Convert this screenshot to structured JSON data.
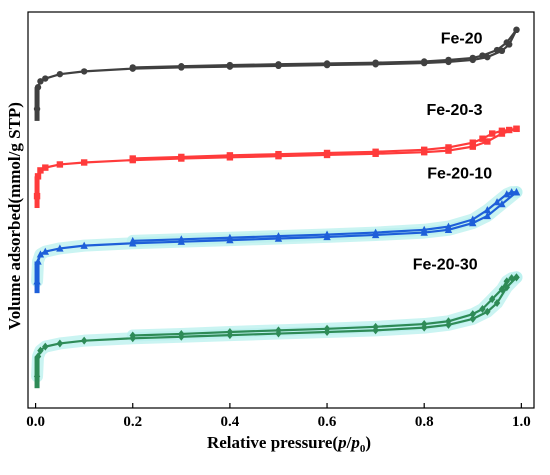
{
  "chart_data": {
    "type": "line",
    "title": "",
    "xlabel_main": "Relative pressure(",
    "xlabel_p": "p",
    "xlabel_slash": "/",
    "xlabel_p0": "p",
    "xlabel_sub": "0",
    "xlabel_close": ")",
    "ylabel": "Volume adsorbed(mmol/g STP)",
    "xlim": [
      0.0,
      1.0
    ],
    "xticks": [
      "0.0",
      "0.2",
      "0.4",
      "0.6",
      "0.8",
      "1.0"
    ],
    "xtick_values": [
      0.0,
      0.2,
      0.4,
      0.6,
      0.8,
      1.0
    ],
    "y_tick_labels": false,
    "ylim": [
      0,
      100
    ],
    "grid": false,
    "series": [
      {
        "name": "Fe-20",
        "color": "#404040",
        "marker": "circle",
        "adsorption": [
          [
            0.003,
            75.5
          ],
          [
            0.005,
            81
          ],
          [
            0.01,
            82.5
          ],
          [
            0.02,
            83.2
          ],
          [
            0.05,
            84.3
          ],
          [
            0.1,
            85
          ],
          [
            0.2,
            85.7
          ],
          [
            0.3,
            86
          ],
          [
            0.4,
            86.2
          ],
          [
            0.5,
            86.4
          ],
          [
            0.6,
            86.6
          ],
          [
            0.7,
            86.8
          ],
          [
            0.8,
            87.1
          ],
          [
            0.85,
            87.4
          ],
          [
            0.9,
            87.9
          ],
          [
            0.93,
            88.6
          ],
          [
            0.96,
            90.2
          ],
          [
            0.975,
            91.8
          ],
          [
            0.99,
            95.5
          ]
        ],
        "desorption": [
          [
            0.99,
            95.5
          ],
          [
            0.97,
            92.3
          ],
          [
            0.95,
            90.4
          ],
          [
            0.92,
            89
          ],
          [
            0.9,
            88.4
          ],
          [
            0.85,
            87.9
          ],
          [
            0.8,
            87.5
          ],
          [
            0.7,
            87.2
          ],
          [
            0.6,
            87
          ],
          [
            0.5,
            86.8
          ],
          [
            0.4,
            86.6
          ],
          [
            0.3,
            86.3
          ],
          [
            0.2,
            86
          ]
        ]
      },
      {
        "name": "Fe-20-3",
        "color": "#ff3b3b",
        "marker": "square",
        "adsorption": [
          [
            0.003,
            53.5
          ],
          [
            0.005,
            58.5
          ],
          [
            0.01,
            60
          ],
          [
            0.02,
            60.7
          ],
          [
            0.05,
            61.5
          ],
          [
            0.1,
            62
          ],
          [
            0.2,
            62.6
          ],
          [
            0.3,
            63
          ],
          [
            0.4,
            63.3
          ],
          [
            0.5,
            63.6
          ],
          [
            0.6,
            63.9
          ],
          [
            0.7,
            64.2
          ],
          [
            0.8,
            64.6
          ],
          [
            0.85,
            65
          ],
          [
            0.9,
            66
          ],
          [
            0.93,
            67.3
          ],
          [
            0.96,
            69.3
          ],
          [
            0.99,
            70.5
          ]
        ],
        "desorption": [
          [
            0.99,
            70.5
          ],
          [
            0.975,
            70.2
          ],
          [
            0.96,
            70
          ],
          [
            0.94,
            69.3
          ],
          [
            0.92,
            68
          ],
          [
            0.9,
            67
          ],
          [
            0.85,
            65.8
          ],
          [
            0.8,
            65.2
          ],
          [
            0.7,
            64.7
          ],
          [
            0.6,
            64.4
          ],
          [
            0.5,
            64.1
          ],
          [
            0.4,
            63.8
          ],
          [
            0.3,
            63.4
          ],
          [
            0.2,
            63
          ]
        ]
      },
      {
        "name": "Fe-20-10",
        "color": "#1e5fd9",
        "marker": "triangle",
        "adsorption": [
          [
            0.003,
            32
          ],
          [
            0.005,
            37
          ],
          [
            0.01,
            38.8
          ],
          [
            0.02,
            39.5
          ],
          [
            0.05,
            40.3
          ],
          [
            0.1,
            41
          ],
          [
            0.2,
            41.6
          ],
          [
            0.3,
            42
          ],
          [
            0.4,
            42.4
          ],
          [
            0.5,
            42.8
          ],
          [
            0.6,
            43.2
          ],
          [
            0.7,
            43.7
          ],
          [
            0.8,
            44.3
          ],
          [
            0.85,
            45
          ],
          [
            0.9,
            46.7
          ],
          [
            0.93,
            48.5
          ],
          [
            0.96,
            51.5
          ],
          [
            0.99,
            54.5
          ]
        ],
        "desorption": [
          [
            0.99,
            54.5
          ],
          [
            0.98,
            54.5
          ],
          [
            0.97,
            54
          ],
          [
            0.95,
            52
          ],
          [
            0.93,
            50
          ],
          [
            0.9,
            47.6
          ],
          [
            0.85,
            45.8
          ],
          [
            0.8,
            45
          ],
          [
            0.7,
            44.3
          ],
          [
            0.6,
            43.8
          ],
          [
            0.5,
            43.4
          ],
          [
            0.4,
            43
          ],
          [
            0.3,
            42.6
          ],
          [
            0.2,
            42.2
          ]
        ]
      },
      {
        "name": "Fe-20-30",
        "color": "#2e8b57",
        "marker": "diamond",
        "adsorption": [
          [
            0.003,
            8
          ],
          [
            0.005,
            13
          ],
          [
            0.01,
            14.5
          ],
          [
            0.02,
            15.5
          ],
          [
            0.05,
            16.3
          ],
          [
            0.1,
            17
          ],
          [
            0.2,
            17.6
          ],
          [
            0.3,
            18
          ],
          [
            0.4,
            18.4
          ],
          [
            0.5,
            18.8
          ],
          [
            0.6,
            19.2
          ],
          [
            0.7,
            19.6
          ],
          [
            0.8,
            20.3
          ],
          [
            0.85,
            21
          ],
          [
            0.9,
            22.5
          ],
          [
            0.93,
            24.3
          ],
          [
            0.95,
            26.5
          ],
          [
            0.97,
            30.5
          ],
          [
            0.99,
            33
          ]
        ],
        "desorption": [
          [
            0.99,
            33
          ],
          [
            0.98,
            32.8
          ],
          [
            0.97,
            32
          ],
          [
            0.96,
            30
          ],
          [
            0.94,
            27.5
          ],
          [
            0.92,
            25
          ],
          [
            0.9,
            23.7
          ],
          [
            0.85,
            21.9
          ],
          [
            0.8,
            21.2
          ],
          [
            0.7,
            20.5
          ],
          [
            0.6,
            20
          ],
          [
            0.5,
            19.6
          ],
          [
            0.4,
            19.2
          ],
          [
            0.3,
            18.7
          ],
          [
            0.2,
            18.3
          ]
        ]
      }
    ]
  }
}
